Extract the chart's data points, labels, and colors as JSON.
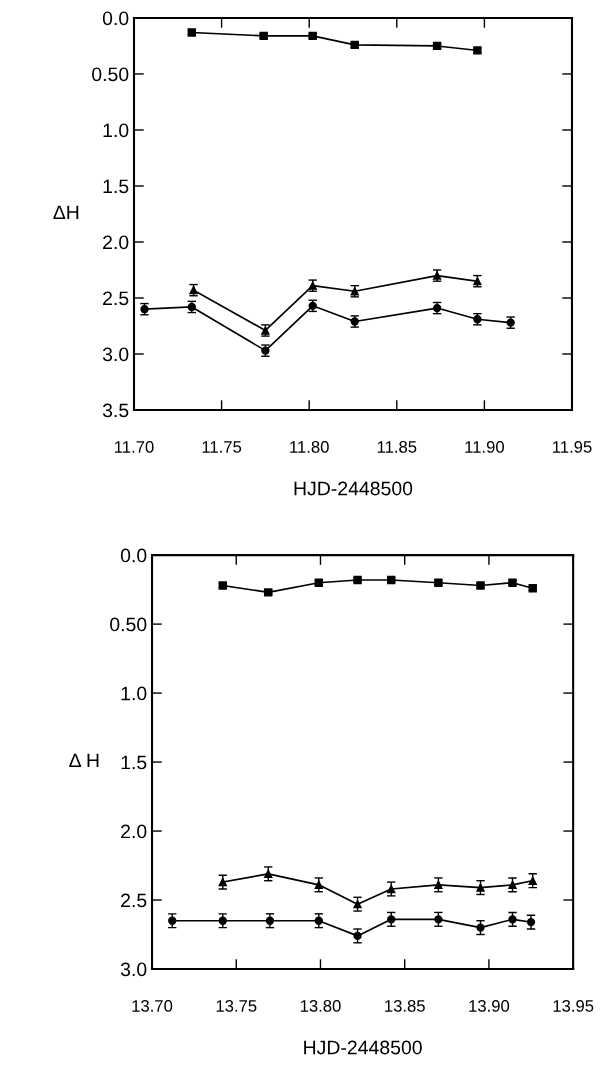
{
  "chart_data": [
    {
      "type": "line",
      "xlabel": "HJD-2448500",
      "ylabel": "ΔH",
      "xlim": [
        11.7,
        11.95
      ],
      "ylim": [
        3.5,
        0.0
      ],
      "xticks": [
        {
          "value": 11.7,
          "label": "11.70"
        },
        {
          "value": 11.75,
          "label": "11.75"
        },
        {
          "value": 11.8,
          "label": "11.80"
        },
        {
          "value": 11.85,
          "label": "11.85"
        },
        {
          "value": 11.9,
          "label": "11.90"
        },
        {
          "value": 11.95,
          "label": "11.95"
        }
      ],
      "yticks": [
        {
          "value": 0.0,
          "label": "0.0"
        },
        {
          "value": 0.5,
          "label": "0.50"
        },
        {
          "value": 1.0,
          "label": "1.0"
        },
        {
          "value": 1.5,
          "label": "1.5"
        },
        {
          "value": 2.0,
          "label": "2.0"
        },
        {
          "value": 2.5,
          "label": "2.5"
        },
        {
          "value": 3.0,
          "label": "3.0"
        },
        {
          "value": 3.5,
          "label": "3.5"
        }
      ],
      "grid": false,
      "series": [
        {
          "color": "#000000",
          "marker": "square",
          "x": [
            11.733,
            11.774,
            11.802,
            11.826,
            11.873,
            11.896
          ],
          "values": [
            0.13,
            0.16,
            0.16,
            0.24,
            0.25,
            0.29
          ],
          "errors": [
            0.02,
            0.02,
            0.02,
            0.02,
            0.02,
            0.02
          ]
        },
        {
          "color": "#000000",
          "marker": "triangle",
          "x": [
            11.734,
            11.775,
            11.802,
            11.826,
            11.873,
            11.896
          ],
          "values": [
            2.43,
            2.79,
            2.39,
            2.44,
            2.3,
            2.35
          ],
          "errors": [
            0.05,
            0.05,
            0.05,
            0.05,
            0.05,
            0.05
          ]
        },
        {
          "color": "#000000",
          "marker": "circle",
          "x": [
            11.706,
            11.733,
            11.775,
            11.802,
            11.826,
            11.873,
            11.896,
            11.915
          ],
          "values": [
            2.6,
            2.58,
            2.97,
            2.57,
            2.71,
            2.59,
            2.69,
            2.72
          ],
          "errors": [
            0.05,
            0.05,
            0.05,
            0.05,
            0.05,
            0.05,
            0.05,
            0.05
          ]
        }
      ]
    },
    {
      "type": "line",
      "xlabel": "HJD-2448500",
      "ylabel": "Δ H",
      "xlim": [
        13.7,
        13.95
      ],
      "ylim": [
        3.0,
        0.0
      ],
      "xticks": [
        {
          "value": 13.7,
          "label": "13.70"
        },
        {
          "value": 13.75,
          "label": "13.75"
        },
        {
          "value": 13.8,
          "label": "13.80"
        },
        {
          "value": 13.85,
          "label": "13.85"
        },
        {
          "value": 13.9,
          "label": "13.90"
        },
        {
          "value": 13.95,
          "label": "13.95"
        }
      ],
      "yticks": [
        {
          "value": 0.0,
          "label": "0.0"
        },
        {
          "value": 0.5,
          "label": "0.50"
        },
        {
          "value": 1.0,
          "label": "1.0"
        },
        {
          "value": 1.5,
          "label": "1.5"
        },
        {
          "value": 2.0,
          "label": "2.0"
        },
        {
          "value": 2.5,
          "label": "2.5"
        },
        {
          "value": 3.0,
          "label": "3.0"
        }
      ],
      "grid": false,
      "series": [
        {
          "color": "#000000",
          "marker": "square",
          "x": [
            13.742,
            13.769,
            13.799,
            13.822,
            13.842,
            13.87,
            13.895,
            13.914,
            13.926
          ],
          "values": [
            0.22,
            0.27,
            0.2,
            0.18,
            0.18,
            0.2,
            0.22,
            0.2,
            0.24
          ],
          "errors": [
            0.015,
            0.015,
            0.015,
            0.015,
            0.015,
            0.015,
            0.015,
            0.015,
            0.015
          ]
        },
        {
          "color": "#000000",
          "marker": "triangle",
          "x": [
            13.742,
            13.769,
            13.799,
            13.822,
            13.842,
            13.87,
            13.895,
            13.914,
            13.926
          ],
          "values": [
            2.37,
            2.31,
            2.39,
            2.53,
            2.42,
            2.39,
            2.41,
            2.39,
            2.36
          ],
          "errors": [
            0.05,
            0.05,
            0.05,
            0.05,
            0.05,
            0.05,
            0.05,
            0.05,
            0.05
          ]
        },
        {
          "color": "#000000",
          "marker": "circle",
          "x": [
            13.712,
            13.742,
            13.77,
            13.799,
            13.822,
            13.842,
            13.87,
            13.895,
            13.914,
            13.925
          ],
          "values": [
            2.65,
            2.65,
            2.65,
            2.65,
            2.76,
            2.64,
            2.64,
            2.7,
            2.64,
            2.66
          ],
          "errors": [
            0.05,
            0.05,
            0.05,
            0.05,
            0.05,
            0.05,
            0.05,
            0.05,
            0.05,
            0.05
          ]
        }
      ]
    }
  ]
}
